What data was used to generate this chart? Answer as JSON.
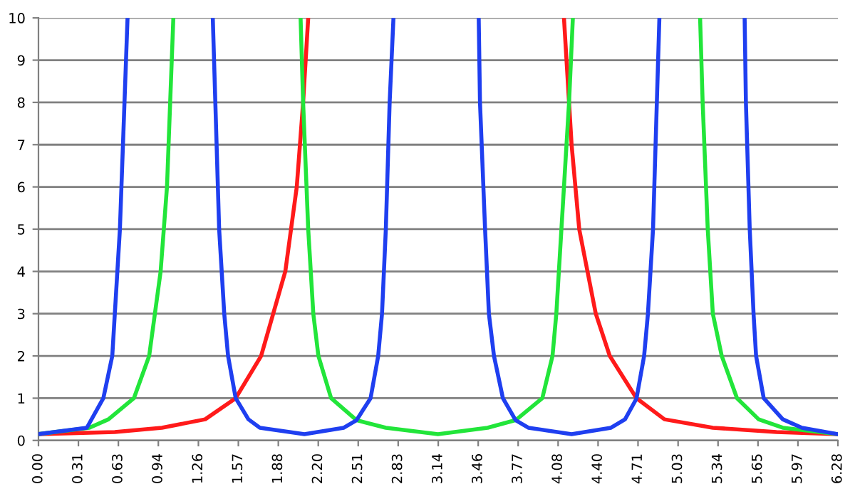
{
  "chart_data": {
    "type": "line",
    "xlim": [
      0,
      6.283
    ],
    "ylim": [
      0,
      10
    ],
    "yticks": [
      0,
      1,
      2,
      3,
      4,
      5,
      6,
      7,
      8,
      9,
      10
    ],
    "xticks": [
      {
        "value": 0,
        "label": "0.00"
      },
      {
        "value": 0.314,
        "label": "0.31"
      },
      {
        "value": 0.628,
        "label": "0.63"
      },
      {
        "value": 0.942,
        "label": "0.94"
      },
      {
        "value": 1.257,
        "label": "1.26"
      },
      {
        "value": 1.571,
        "label": "1.57"
      },
      {
        "value": 1.885,
        "label": "1.88"
      },
      {
        "value": 2.199,
        "label": "2.20"
      },
      {
        "value": 2.513,
        "label": "2.51"
      },
      {
        "value": 2.827,
        "label": "2.83"
      },
      {
        "value": 3.142,
        "label": "3.14"
      },
      {
        "value": 3.456,
        "label": "3.46"
      },
      {
        "value": 3.77,
        "label": "3.77"
      },
      {
        "value": 4.084,
        "label": "4.08"
      },
      {
        "value": 4.398,
        "label": "4.40"
      },
      {
        "value": 4.712,
        "label": "4.71"
      },
      {
        "value": 5.027,
        "label": "5.03"
      },
      {
        "value": 5.341,
        "label": "5.34"
      },
      {
        "value": 5.655,
        "label": "5.65"
      },
      {
        "value": 5.969,
        "label": "5.97"
      },
      {
        "value": 6.283,
        "label": "6.28"
      }
    ],
    "grid": "y",
    "marker": "none",
    "line_style": "solid",
    "series": [
      {
        "color": "#ff1a1a",
        "x": [
          0,
          0.6,
          0.97,
          1.31,
          1.55,
          1.75,
          1.94,
          2.03,
          2.08,
          2.12,
          3.13,
          4.13,
          4.17,
          4.19,
          4.25,
          4.38,
          4.49,
          4.7,
          4.92,
          5.3,
          5.8,
          6.28
        ],
        "values": [
          0.15,
          0.2,
          0.3,
          0.5,
          1,
          2,
          4,
          6,
          8,
          10,
          null,
          10,
          8,
          7,
          5,
          3,
          2,
          1,
          0.5,
          0.3,
          0.2,
          0.15
        ]
      },
      {
        "color": "#22e53a",
        "x": [
          0,
          0.4,
          0.55,
          0.75,
          0.87,
          0.96,
          1.01,
          1.06,
          1.56,
          2.06,
          2.08,
          2.12,
          2.16,
          2.2,
          2.3,
          2.5,
          2.73,
          3.14,
          3.53,
          3.75,
          3.96,
          4.04,
          4.07,
          4.11,
          4.17,
          4.2,
          4.7,
          5.2,
          5.22,
          5.26,
          5.3,
          5.37,
          5.49,
          5.66,
          5.85,
          6.28
        ],
        "values": [
          0.15,
          0.3,
          0.5,
          1,
          2,
          4,
          6,
          10,
          null,
          10,
          8,
          5,
          3,
          2,
          1,
          0.48,
          0.3,
          0.15,
          0.3,
          0.48,
          1,
          2,
          3,
          5,
          8,
          10,
          null,
          10,
          8,
          5,
          3,
          2,
          1,
          0.5,
          0.3,
          0.15
        ]
      },
      {
        "color": "#1f3ff0",
        "x": [
          0,
          0.38,
          0.51,
          0.58,
          0.64,
          0.7,
          1.0,
          1.37,
          1.39,
          1.42,
          1.46,
          1.49,
          1.55,
          1.65,
          1.74,
          2.09,
          2.4,
          2.5,
          2.61,
          2.67,
          2.7,
          2.73,
          2.76,
          2.79,
          3.1,
          3.46,
          3.47,
          3.51,
          3.54,
          3.58,
          3.65,
          3.75,
          3.85,
          4.19,
          4.5,
          4.61,
          4.7,
          4.76,
          4.79,
          4.83,
          4.86,
          4.88,
          5.2,
          5.55,
          5.56,
          5.59,
          5.62,
          5.64,
          5.7,
          5.85,
          6.0,
          6.28
        ],
        "values": [
          0.15,
          0.3,
          1,
          2,
          5,
          10,
          null,
          10,
          8,
          5,
          3,
          2,
          1,
          0.5,
          0.3,
          0.15,
          0.3,
          0.48,
          1,
          2,
          3,
          5,
          8,
          10,
          null,
          10,
          8,
          5,
          3,
          2,
          1,
          0.48,
          0.3,
          0.15,
          0.3,
          0.5,
          0.99,
          2,
          3,
          5,
          8,
          10,
          null,
          10,
          8,
          5,
          3,
          2,
          1,
          0.5,
          0.3,
          0.15
        ]
      }
    ]
  }
}
